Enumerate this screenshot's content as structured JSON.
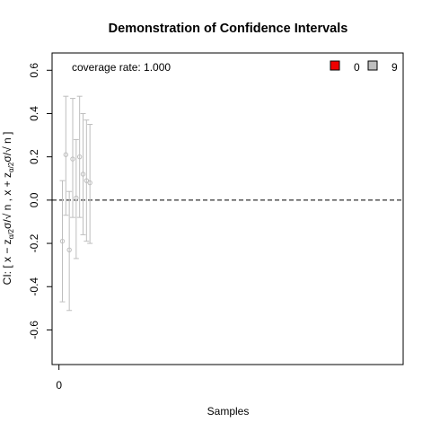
{
  "chart_data": {
    "type": "scatter",
    "title": "Demonstration of Confidence Intervals",
    "xlabel": "Samples",
    "ylabel": {
      "prefix": "CI: [ x",
      "minus": " − z",
      "sub1": "α",
      "mid1": "/",
      "sub2": "2",
      "mid2": "σ/√ n  ,  x + z",
      "sub3": "α",
      "mid3": "/",
      "sub4": "2",
      "suffix": "σ/√ n ]"
    },
    "xlim": [
      -2,
      100
    ],
    "ylim": [
      -0.76,
      0.68
    ],
    "xticks": [
      {
        "value": 0,
        "label": "0"
      }
    ],
    "yticks": [
      {
        "value": -0.6,
        "label": "-0.6"
      },
      {
        "value": -0.4,
        "label": "-0.4"
      },
      {
        "value": -0.2,
        "label": "-0.2"
      },
      {
        "value": 0.0,
        "label": "0.0"
      },
      {
        "value": 0.2,
        "label": "0.2"
      },
      {
        "value": 0.4,
        "label": "0.4"
      },
      {
        "value": 0.6,
        "label": "0.6"
      }
    ],
    "reference_line": {
      "y": 0,
      "style": "dashed",
      "color": "#000000"
    },
    "coverage_text": "coverage rate: 1.000",
    "legend": {
      "position": "top-right",
      "items": [
        {
          "label": "0",
          "color": "#ee0000"
        },
        {
          "label": "9",
          "color": "#bebebe"
        }
      ]
    },
    "interval_color": "#bebebe",
    "intervals": [
      {
        "x": 1,
        "mean": -0.19,
        "lower": -0.47,
        "upper": 0.09
      },
      {
        "x": 2,
        "mean": 0.21,
        "lower": -0.07,
        "upper": 0.48
      },
      {
        "x": 3,
        "mean": -0.23,
        "lower": -0.51,
        "upper": 0.04
      },
      {
        "x": 4,
        "mean": 0.19,
        "lower": -0.08,
        "upper": 0.47
      },
      {
        "x": 5,
        "mean": 0.01,
        "lower": -0.27,
        "upper": 0.28
      },
      {
        "x": 6,
        "mean": 0.2,
        "lower": -0.08,
        "upper": 0.48
      },
      {
        "x": 7,
        "mean": 0.12,
        "lower": -0.16,
        "upper": 0.4
      },
      {
        "x": 8,
        "mean": 0.09,
        "lower": -0.19,
        "upper": 0.37
      },
      {
        "x": 9,
        "mean": 0.08,
        "lower": -0.2,
        "upper": 0.35
      }
    ]
  }
}
